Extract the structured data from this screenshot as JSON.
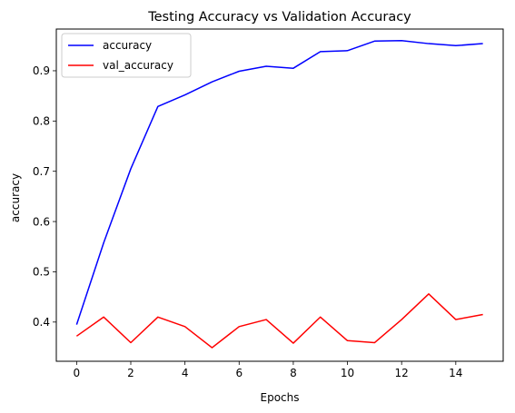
{
  "chart_data": {
    "type": "line",
    "title": "Testing Accuracy vs Validation Accuracy",
    "xlabel": "Epochs",
    "ylabel": "accuracy",
    "x": [
      0,
      1,
      2,
      3,
      4,
      5,
      6,
      7,
      8,
      9,
      10,
      11,
      12,
      13,
      14,
      15
    ],
    "xlim": [
      -0.75,
      15.75
    ],
    "ylim": [
      0.322,
      0.983
    ],
    "xticks": [
      0,
      2,
      4,
      6,
      8,
      10,
      12,
      14
    ],
    "yticks": [
      0.4,
      0.5,
      0.6,
      0.7,
      0.8,
      0.9
    ],
    "xtick_labels": [
      "0",
      "2",
      "4",
      "6",
      "8",
      "10",
      "12",
      "14"
    ],
    "ytick_labels": [
      "0.4",
      "0.5",
      "0.6",
      "0.7",
      "0.8",
      "0.9"
    ],
    "grid": false,
    "legend_position": "top-left",
    "series": [
      {
        "name": "accuracy",
        "color": "#0000ff",
        "values": [
          0.395,
          0.558,
          0.705,
          0.829,
          0.852,
          0.878,
          0.899,
          0.909,
          0.905,
          0.938,
          0.94,
          0.959,
          0.96,
          0.954,
          0.95,
          0.954
        ]
      },
      {
        "name": "val_accuracy",
        "color": "#ff0000",
        "values": [
          0.372,
          0.41,
          0.359,
          0.41,
          0.391,
          0.349,
          0.391,
          0.405,
          0.358,
          0.41,
          0.363,
          0.359,
          0.405,
          0.456,
          0.405,
          0.415
        ]
      }
    ]
  }
}
